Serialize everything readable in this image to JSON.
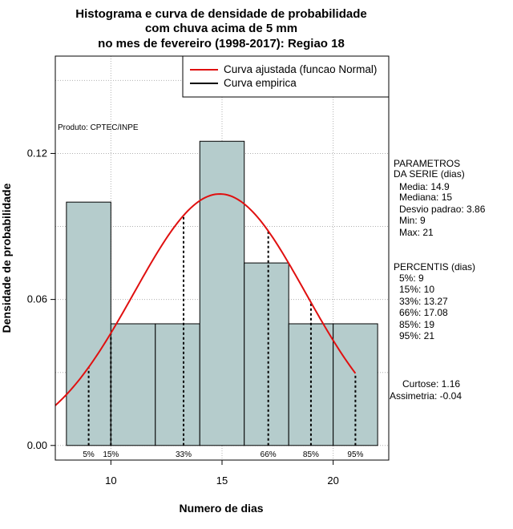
{
  "chart_data": {
    "type": "bar",
    "title_lines": [
      "Histograma e curva de densidade de probabilidade",
      "com chuva acima de 5 mm",
      "no mes de fevereiro (1998-2017): Regiao 18"
    ],
    "xlabel": "Numero de dias",
    "ylabel": "Densidade de probabilidade",
    "xlim": [
      7.5,
      22.5
    ],
    "ylim": [
      -0.006,
      0.16
    ],
    "x_ticks": [
      "10",
      "15",
      "20"
    ],
    "x_tick_values": [
      10,
      15,
      20
    ],
    "y_ticks": [
      "0.00",
      "0.06",
      "0.12"
    ],
    "y_tick_values": [
      0.0,
      0.06,
      0.12
    ],
    "grid": true,
    "bins": [
      {
        "from": 8,
        "to": 10,
        "density": 0.1
      },
      {
        "from": 10,
        "to": 12,
        "density": 0.05
      },
      {
        "from": 12,
        "to": 14,
        "density": 0.05
      },
      {
        "from": 14,
        "to": 16,
        "density": 0.125
      },
      {
        "from": 16,
        "to": 18,
        "density": 0.075
      },
      {
        "from": 18,
        "to": 20,
        "density": 0.05
      },
      {
        "from": 20,
        "to": 22,
        "density": 0.05
      }
    ],
    "bar_color": "#b5cccc",
    "curve_color": "#e01010",
    "normal_fit": {
      "mean": 14.9,
      "sd": 3.86,
      "x_from": 7.5,
      "x_to": 21
    },
    "percentile_lines": [
      {
        "label": "5%",
        "x": 9
      },
      {
        "label": "15%",
        "x": 10
      },
      {
        "label": "33%",
        "x": 13.27
      },
      {
        "label": "66%",
        "x": 17.08
      },
      {
        "label": "85%",
        "x": 19
      },
      {
        "label": "95%",
        "x": 21
      }
    ],
    "legend": [
      {
        "label": "Curva ajustada (funcao Normal)",
        "color": "#e01010"
      },
      {
        "label": "Curva empirica",
        "color": "#000000"
      }
    ],
    "legend_position": "top-right",
    "producer_note": "Produto: CPTEC/INPE",
    "parametros": {
      "header": [
        "PARAMETROS",
        "DA SERIE (dias)"
      ],
      "lines": [
        "Media: 14.9",
        "Mediana: 15",
        "Desvio padrao: 3.86",
        "Min: 9",
        "Max: 21"
      ]
    },
    "percentis": {
      "header": "PERCENTIS (dias)",
      "lines": [
        "5%: 9",
        "15%: 10",
        "33%: 13.27",
        "66%: 17.08",
        "85%: 19",
        "95%: 21"
      ]
    },
    "shape": {
      "lines": [
        "Curtose: 1.16",
        "Assimetria: -0.04"
      ]
    }
  }
}
